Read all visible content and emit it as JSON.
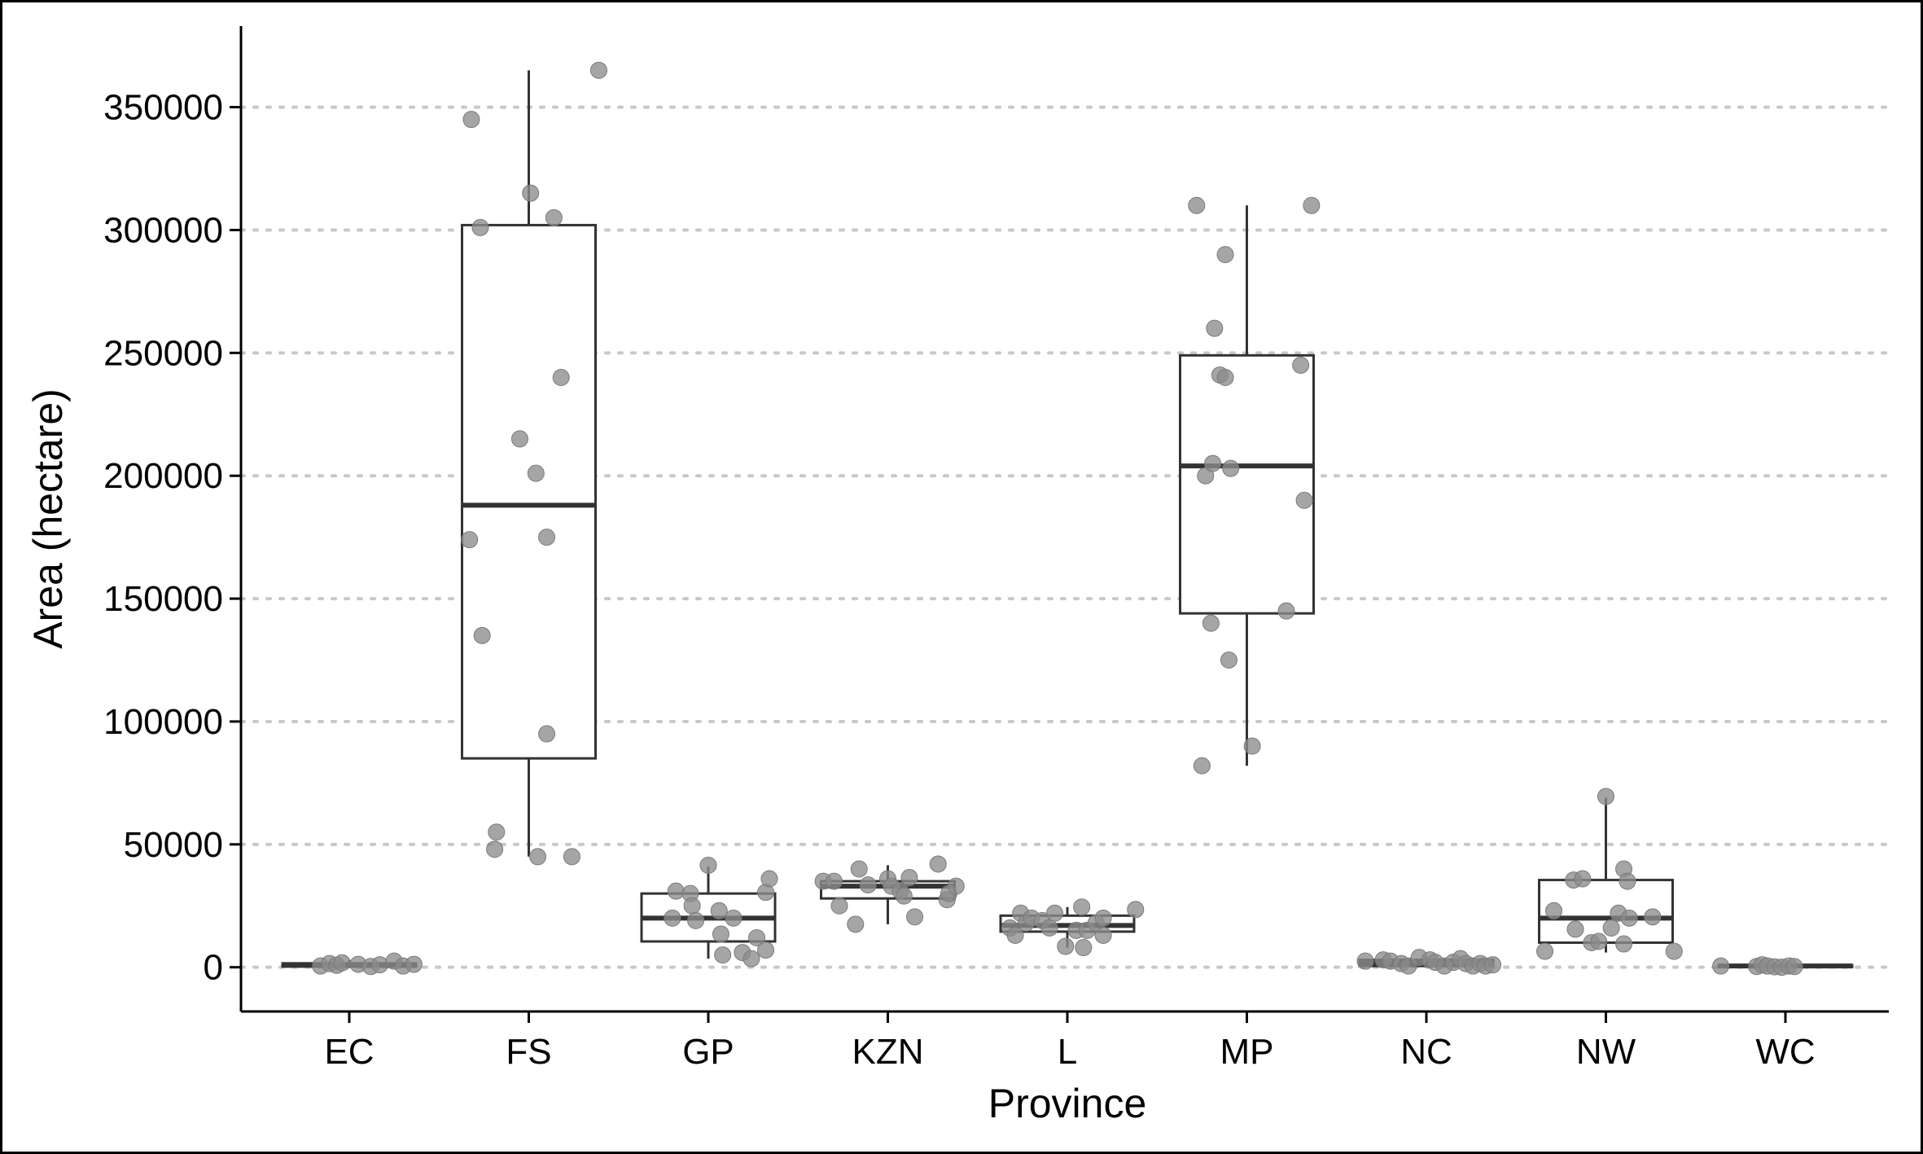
{
  "chart_data": {
    "type": "box",
    "xlabel": "Province",
    "ylabel": "Area (hectare)",
    "categories": [
      "EC",
      "FS",
      "GP",
      "KZN",
      "L",
      "MP",
      "NC",
      "NW",
      "WC"
    ],
    "yticks": [
      0,
      50000,
      100000,
      150000,
      200000,
      250000,
      300000,
      350000
    ],
    "yticklabels": [
      "0",
      "50000",
      "100000",
      "150000",
      "200000",
      "250000",
      "300000",
      "350000"
    ],
    "ylim": [
      -18000,
      383000
    ],
    "grid": "horizontal-dotted",
    "colors": {
      "point": "#8c8c8c",
      "box": "#333333",
      "grid": "#c8c8c8"
    },
    "boxes": [
      {
        "category": "EC",
        "whisker_low": 0,
        "q1": 300,
        "median": 800,
        "q3": 1600,
        "whisker_high": 3000
      },
      {
        "category": "FS",
        "whisker_low": 45000,
        "q1": 85000,
        "median": 188000,
        "q3": 302000,
        "whisker_high": 365000
      },
      {
        "category": "GP",
        "whisker_low": 3500,
        "q1": 10500,
        "median": 20000,
        "q3": 30000,
        "whisker_high": 41000
      },
      {
        "category": "KZN",
        "whisker_low": 17500,
        "q1": 28000,
        "median": 33000,
        "q3": 35000,
        "whisker_high": 41500
      },
      {
        "category": "L",
        "whisker_low": 8000,
        "q1": 14500,
        "median": 17000,
        "q3": 21000,
        "whisker_high": 24500
      },
      {
        "category": "MP",
        "whisker_low": 82000,
        "q1": 144000,
        "median": 204000,
        "q3": 249000,
        "whisker_high": 310000
      },
      {
        "category": "NC",
        "whisker_low": 0,
        "q1": 500,
        "median": 1800,
        "q3": 3000,
        "whisker_high": 4500
      },
      {
        "category": "NW",
        "whisker_low": 6000,
        "q1": 10000,
        "median": 20000,
        "q3": 35500,
        "whisker_high": 69000
      },
      {
        "category": "WC",
        "whisker_low": 0,
        "q1": 100,
        "median": 500,
        "q3": 900,
        "whisker_high": 1000
      }
    ],
    "points": [
      {
        "category": "EC",
        "x": 0.84,
        "y": 500
      },
      {
        "category": "EC",
        "x": 0.89,
        "y": 1500
      },
      {
        "category": "EC",
        "x": 0.93,
        "y": 800
      },
      {
        "category": "EC",
        "x": 0.96,
        "y": 1800
      },
      {
        "category": "EC",
        "x": 1.05,
        "y": 1200
      },
      {
        "category": "EC",
        "x": 1.12,
        "y": 300
      },
      {
        "category": "EC",
        "x": 1.17,
        "y": 1000
      },
      {
        "category": "EC",
        "x": 1.25,
        "y": 2500
      },
      {
        "category": "EC",
        "x": 1.3,
        "y": 500
      },
      {
        "category": "EC",
        "x": 1.36,
        "y": 1200
      },
      {
        "category": "FS",
        "x": 1.68,
        "y": 345000
      },
      {
        "category": "FS",
        "x": 1.73,
        "y": 301000
      },
      {
        "category": "FS",
        "x": 1.67,
        "y": 174000
      },
      {
        "category": "FS",
        "x": 1.74,
        "y": 135000
      },
      {
        "category": "FS",
        "x": 1.82,
        "y": 55000
      },
      {
        "category": "FS",
        "x": 1.81,
        "y": 48000
      },
      {
        "category": "FS",
        "x": 1.95,
        "y": 215000
      },
      {
        "category": "FS",
        "x": 2.01,
        "y": 315000
      },
      {
        "category": "FS",
        "x": 2.04,
        "y": 201000
      },
      {
        "category": "FS",
        "x": 2.05,
        "y": 45000
      },
      {
        "category": "FS",
        "x": 2.1,
        "y": 175000
      },
      {
        "category": "FS",
        "x": 2.1,
        "y": 95000
      },
      {
        "category": "FS",
        "x": 2.14,
        "y": 305000
      },
      {
        "category": "FS",
        "x": 2.18,
        "y": 240000
      },
      {
        "category": "FS",
        "x": 2.24,
        "y": 45000
      },
      {
        "category": "FS",
        "x": 2.39,
        "y": 365000
      },
      {
        "category": "GP",
        "x": 2.8,
        "y": 20000
      },
      {
        "category": "GP",
        "x": 2.82,
        "y": 31000
      },
      {
        "category": "GP",
        "x": 2.9,
        "y": 30000
      },
      {
        "category": "GP",
        "x": 2.91,
        "y": 25000
      },
      {
        "category": "GP",
        "x": 2.93,
        "y": 19000
      },
      {
        "category": "GP",
        "x": 3.0,
        "y": 41500
      },
      {
        "category": "GP",
        "x": 3.06,
        "y": 23000
      },
      {
        "category": "GP",
        "x": 3.07,
        "y": 13500
      },
      {
        "category": "GP",
        "x": 3.08,
        "y": 5000
      },
      {
        "category": "GP",
        "x": 3.14,
        "y": 20000
      },
      {
        "category": "GP",
        "x": 3.19,
        "y": 6000
      },
      {
        "category": "GP",
        "x": 3.24,
        "y": 3500
      },
      {
        "category": "GP",
        "x": 3.27,
        "y": 12000
      },
      {
        "category": "GP",
        "x": 3.32,
        "y": 7000
      },
      {
        "category": "GP",
        "x": 3.32,
        "y": 30500
      },
      {
        "category": "GP",
        "x": 3.34,
        "y": 36000
      },
      {
        "category": "KZN",
        "x": 3.64,
        "y": 35000
      },
      {
        "category": "KZN",
        "x": 3.7,
        "y": 35000
      },
      {
        "category": "KZN",
        "x": 3.73,
        "y": 25000
      },
      {
        "category": "KZN",
        "x": 3.82,
        "y": 17500
      },
      {
        "category": "KZN",
        "x": 3.84,
        "y": 40000
      },
      {
        "category": "KZN",
        "x": 3.89,
        "y": 33500
      },
      {
        "category": "KZN",
        "x": 4.0,
        "y": 36000
      },
      {
        "category": "KZN",
        "x": 4.02,
        "y": 33000
      },
      {
        "category": "KZN",
        "x": 4.07,
        "y": 31000
      },
      {
        "category": "KZN",
        "x": 4.09,
        "y": 29000
      },
      {
        "category": "KZN",
        "x": 4.12,
        "y": 36500
      },
      {
        "category": "KZN",
        "x": 4.15,
        "y": 20500
      },
      {
        "category": "KZN",
        "x": 4.28,
        "y": 42000
      },
      {
        "category": "KZN",
        "x": 4.33,
        "y": 27500
      },
      {
        "category": "KZN",
        "x": 4.34,
        "y": 30000
      },
      {
        "category": "KZN",
        "x": 4.38,
        "y": 33000
      },
      {
        "category": "L",
        "x": 4.68,
        "y": 16000
      },
      {
        "category": "L",
        "x": 4.71,
        "y": 13000
      },
      {
        "category": "L",
        "x": 4.74,
        "y": 22000
      },
      {
        "category": "L",
        "x": 4.77,
        "y": 18000
      },
      {
        "category": "L",
        "x": 4.8,
        "y": 20000
      },
      {
        "category": "L",
        "x": 4.86,
        "y": 19000
      },
      {
        "category": "L",
        "x": 4.9,
        "y": 16000
      },
      {
        "category": "L",
        "x": 4.93,
        "y": 22000
      },
      {
        "category": "L",
        "x": 4.99,
        "y": 8500
      },
      {
        "category": "L",
        "x": 5.05,
        "y": 15000
      },
      {
        "category": "L",
        "x": 5.08,
        "y": 24500
      },
      {
        "category": "L",
        "x": 5.09,
        "y": 8000
      },
      {
        "category": "L",
        "x": 5.11,
        "y": 15000
      },
      {
        "category": "L",
        "x": 5.16,
        "y": 18000
      },
      {
        "category": "L",
        "x": 5.2,
        "y": 20000
      },
      {
        "category": "L",
        "x": 5.2,
        "y": 13000
      },
      {
        "category": "L",
        "x": 5.38,
        "y": 23500
      },
      {
        "category": "MP",
        "x": 5.72,
        "y": 310000
      },
      {
        "category": "MP",
        "x": 5.75,
        "y": 82000
      },
      {
        "category": "MP",
        "x": 5.77,
        "y": 200000
      },
      {
        "category": "MP",
        "x": 5.8,
        "y": 140000
      },
      {
        "category": "MP",
        "x": 5.82,
        "y": 260000
      },
      {
        "category": "MP",
        "x": 5.81,
        "y": 205000
      },
      {
        "category": "MP",
        "x": 5.85,
        "y": 241000
      },
      {
        "category": "MP",
        "x": 5.88,
        "y": 240000
      },
      {
        "category": "MP",
        "x": 5.88,
        "y": 290000
      },
      {
        "category": "MP",
        "x": 5.9,
        "y": 125000
      },
      {
        "category": "MP",
        "x": 5.91,
        "y": 203000
      },
      {
        "category": "MP",
        "x": 6.03,
        "y": 90000
      },
      {
        "category": "MP",
        "x": 6.22,
        "y": 145000
      },
      {
        "category": "MP",
        "x": 6.3,
        "y": 245000
      },
      {
        "category": "MP",
        "x": 6.32,
        "y": 190000
      },
      {
        "category": "MP",
        "x": 6.36,
        "y": 310000
      },
      {
        "category": "NC",
        "x": 6.66,
        "y": 2500
      },
      {
        "category": "NC",
        "x": 6.76,
        "y": 3000
      },
      {
        "category": "NC",
        "x": 6.8,
        "y": 2500
      },
      {
        "category": "NC",
        "x": 6.86,
        "y": 1500
      },
      {
        "category": "NC",
        "x": 6.9,
        "y": 500
      },
      {
        "category": "NC",
        "x": 6.96,
        "y": 4000
      },
      {
        "category": "NC",
        "x": 7.02,
        "y": 3000
      },
      {
        "category": "NC",
        "x": 7.05,
        "y": 2000
      },
      {
        "category": "NC",
        "x": 7.1,
        "y": 500
      },
      {
        "category": "NC",
        "x": 7.15,
        "y": 2000
      },
      {
        "category": "NC",
        "x": 7.19,
        "y": 3500
      },
      {
        "category": "NC",
        "x": 7.22,
        "y": 1500
      },
      {
        "category": "NC",
        "x": 7.26,
        "y": 500
      },
      {
        "category": "NC",
        "x": 7.3,
        "y": 1500
      },
      {
        "category": "NC",
        "x": 7.33,
        "y": 500
      },
      {
        "category": "NC",
        "x": 7.37,
        "y": 1000
      },
      {
        "category": "NW",
        "x": 7.66,
        "y": 6500
      },
      {
        "category": "NW",
        "x": 7.71,
        "y": 23000
      },
      {
        "category": "NW",
        "x": 7.82,
        "y": 35500
      },
      {
        "category": "NW",
        "x": 7.83,
        "y": 15500
      },
      {
        "category": "NW",
        "x": 7.87,
        "y": 36000
      },
      {
        "category": "NW",
        "x": 7.92,
        "y": 10000
      },
      {
        "category": "NW",
        "x": 7.96,
        "y": 10500
      },
      {
        "category": "NW",
        "x": 8.0,
        "y": 69500
      },
      {
        "category": "NW",
        "x": 8.03,
        "y": 16000
      },
      {
        "category": "NW",
        "x": 8.07,
        "y": 22000
      },
      {
        "category": "NW",
        "x": 8.1,
        "y": 40000
      },
      {
        "category": "NW",
        "x": 8.12,
        "y": 35000
      },
      {
        "category": "NW",
        "x": 8.13,
        "y": 20000
      },
      {
        "category": "NW",
        "x": 8.1,
        "y": 9500
      },
      {
        "category": "NW",
        "x": 8.26,
        "y": 20500
      },
      {
        "category": "NW",
        "x": 8.38,
        "y": 6500
      },
      {
        "category": "WC",
        "x": 8.64,
        "y": 500
      },
      {
        "category": "WC",
        "x": 8.84,
        "y": 300
      },
      {
        "category": "WC",
        "x": 8.87,
        "y": 1000
      },
      {
        "category": "WC",
        "x": 8.9,
        "y": 500
      },
      {
        "category": "WC",
        "x": 8.94,
        "y": 200
      },
      {
        "category": "WC",
        "x": 8.98,
        "y": 0
      },
      {
        "category": "WC",
        "x": 9.02,
        "y": 500
      },
      {
        "category": "WC",
        "x": 9.05,
        "y": 300
      }
    ]
  }
}
